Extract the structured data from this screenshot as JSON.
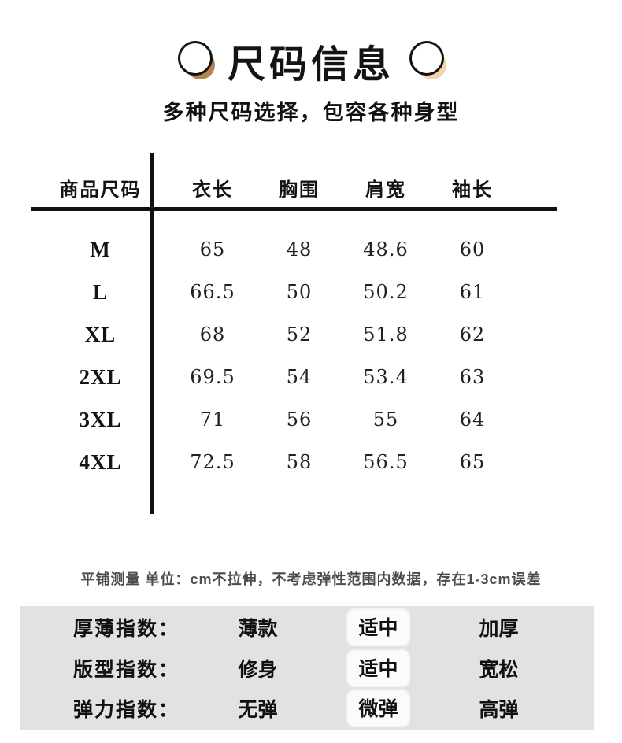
{
  "header": {
    "title": "尺码信息",
    "subtitle": "多种尺码选择，包容各种身型",
    "decor_colors": {
      "left_circle_shadow": "#b5854e",
      "right_circle_shadow": "#f6d4ad",
      "circle_outline": "#111111",
      "circle_fill": "#ffffff"
    }
  },
  "size_table": {
    "columns": [
      "商品尺码",
      "衣长",
      "胸围",
      "肩宽",
      "袖长"
    ],
    "rows": [
      {
        "size": "M",
        "length": "65",
        "chest": "48",
        "shoulder": "48.6",
        "sleeve": "60"
      },
      {
        "size": "L",
        "length": "66.5",
        "chest": "50",
        "shoulder": "50.2",
        "sleeve": "61"
      },
      {
        "size": "XL",
        "length": "68",
        "chest": "52",
        "shoulder": "51.8",
        "sleeve": "62"
      },
      {
        "size": "2XL",
        "length": "69.5",
        "chest": "54",
        "shoulder": "53.4",
        "sleeve": "63"
      },
      {
        "size": "3XL",
        "length": "71",
        "chest": "56",
        "shoulder": "55",
        "sleeve": "64"
      },
      {
        "size": "4XL",
        "length": "72.5",
        "chest": "58",
        "shoulder": "56.5",
        "sleeve": "65"
      }
    ]
  },
  "note": "平铺测量 单位：cm不拉伸，不考虑弹性范围内数据，存在1-3cm误差",
  "indices": {
    "panel_background": "#e2e2e2",
    "highlight_background": "#fbfbfb",
    "rows": [
      {
        "label": "厚薄指数：",
        "options": [
          "薄款",
          "适中",
          "加厚"
        ],
        "active": "适中"
      },
      {
        "label": "版型指数：",
        "options": [
          "修身",
          "适中",
          "宽松"
        ],
        "active": "适中"
      },
      {
        "label": "弹力指数：",
        "options": [
          "无弹",
          "微弹",
          "高弹"
        ],
        "active": "微弹"
      }
    ]
  }
}
